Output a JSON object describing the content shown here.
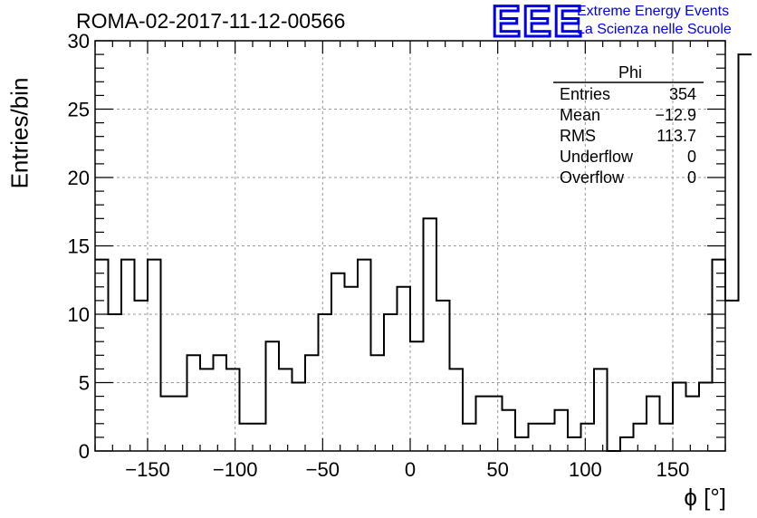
{
  "header": {
    "title": "ROMA-02-2017-11-12-00566",
    "logo_letters": "EEE",
    "logo_line1": "Extreme Energy Events",
    "logo_line2": "La Scienza nelle Scuole",
    "logo_color": "#0000ee"
  },
  "stats_box": {
    "title": "Phi",
    "rows": [
      {
        "label": "Entries",
        "value": "354"
      },
      {
        "label": "Mean",
        "value": "−12.9"
      },
      {
        "label": "RMS",
        "value": "113.7"
      },
      {
        "label": "Underflow",
        "value": "0"
      },
      {
        "label": "Overflow",
        "value": "0"
      }
    ]
  },
  "chart_data": {
    "type": "bar",
    "histogram": true,
    "xlabel": "ϕ [°]",
    "ylabel": "Entries/bin",
    "xlim": [
      -180,
      180
    ],
    "ylim": [
      0,
      30
    ],
    "bin_width": 7.5,
    "x_ticks": [
      -150,
      -100,
      -50,
      0,
      50,
      100,
      150
    ],
    "x_tick_labels": [
      "−150",
      "−100",
      "−50",
      "0",
      "50",
      "100",
      "150"
    ],
    "y_ticks": [
      0,
      5,
      10,
      15,
      20,
      25,
      30
    ],
    "y_tick_labels": [
      "0",
      "5",
      "10",
      "15",
      "20",
      "25",
      "30"
    ],
    "grid": true,
    "line_color": "#000000",
    "values": [
      14,
      10,
      14,
      11,
      14,
      4,
      4,
      7,
      6,
      7,
      6,
      2,
      2,
      8,
      6,
      5,
      7,
      10,
      13,
      12,
      14,
      7,
      10,
      12,
      8,
      17,
      11,
      6,
      2,
      4,
      4,
      3,
      1,
      2,
      2,
      3,
      1,
      2,
      6,
      0,
      1,
      2,
      4,
      2,
      5,
      4,
      5,
      14,
      11,
      29
    ]
  }
}
